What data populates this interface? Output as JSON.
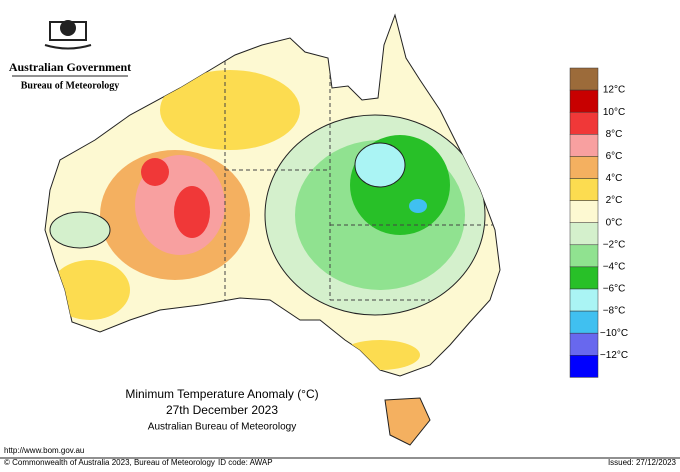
{
  "header": {
    "government": "Australian Government",
    "agency": "Bureau of Meteorology"
  },
  "legend": {
    "labels": [
      "12°C",
      "10°C",
      "8°C",
      "6°C",
      "4°C",
      "2°C",
      "0°C",
      "−2°C",
      "−4°C",
      "−6°C",
      "−8°C",
      "−10°C",
      "−12°C"
    ],
    "colors": [
      "#9c6b3a",
      "#c80000",
      "#f03838",
      "#f8a0a0",
      "#f4b060",
      "#fcdc50",
      "#fdf9d2",
      "#d4f0cc",
      "#90e290",
      "#28c028",
      "#aaf4f4",
      "#40c0f0",
      "#6868ee",
      "#0000ff"
    ]
  },
  "title": {
    "line1": "Minimum Temperature Anomaly (°C)",
    "line2": "27th December 2023",
    "line3": "Australian Bureau of Meteorology"
  },
  "footer": {
    "url": "http://www.bom.gov.au",
    "copyright": "© Commonwealth of Australia 2023, Bureau of Meteorology",
    "id_code": "ID code: AWAP",
    "issued": "Issued: 27/12/2023"
  }
}
